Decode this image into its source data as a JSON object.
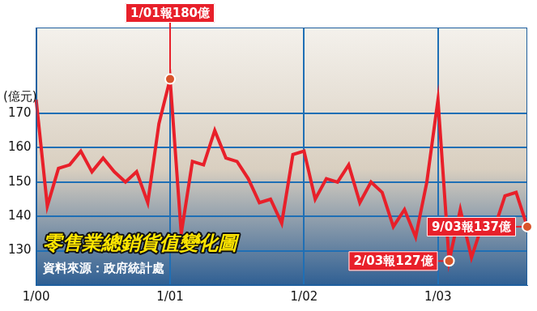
{
  "chart_data": {
    "type": "line",
    "title": "零售業總銷貨值變化圖",
    "source": "資料來源：政府統計處",
    "y_label": "(億元)",
    "categories": [
      "1/00",
      null,
      null,
      null,
      null,
      null,
      null,
      null,
      null,
      null,
      null,
      null,
      "1/01",
      null,
      null,
      null,
      null,
      null,
      null,
      null,
      null,
      null,
      null,
      null,
      "1/02",
      null,
      null,
      null,
      null,
      null,
      null,
      null,
      null,
      null,
      null,
      null,
      "1/03",
      null,
      null,
      null,
      null,
      null,
      null,
      null,
      null
    ],
    "values": [
      174,
      143,
      154,
      155,
      159,
      153,
      157,
      153,
      150,
      153,
      144,
      167,
      180,
      135,
      156,
      155,
      165,
      157,
      156,
      151,
      144,
      145,
      138,
      158,
      159,
      145,
      151,
      150,
      155,
      144,
      150,
      147,
      137,
      142,
      134,
      150,
      174,
      127,
      142,
      128,
      138,
      136,
      146,
      147,
      137
    ],
    "color": "#e8202a",
    "ylim": [
      120,
      195
    ],
    "yticks": [
      130,
      140,
      150,
      160,
      170
    ],
    "grid": true,
    "annotations": [
      {
        "text": "1/01報180億",
        "point": 12,
        "value": 180
      },
      {
        "text": "2/03報127億",
        "point": 37,
        "value": 127
      },
      {
        "text": "9/03報137億",
        "point": 44,
        "value": 137
      }
    ]
  }
}
